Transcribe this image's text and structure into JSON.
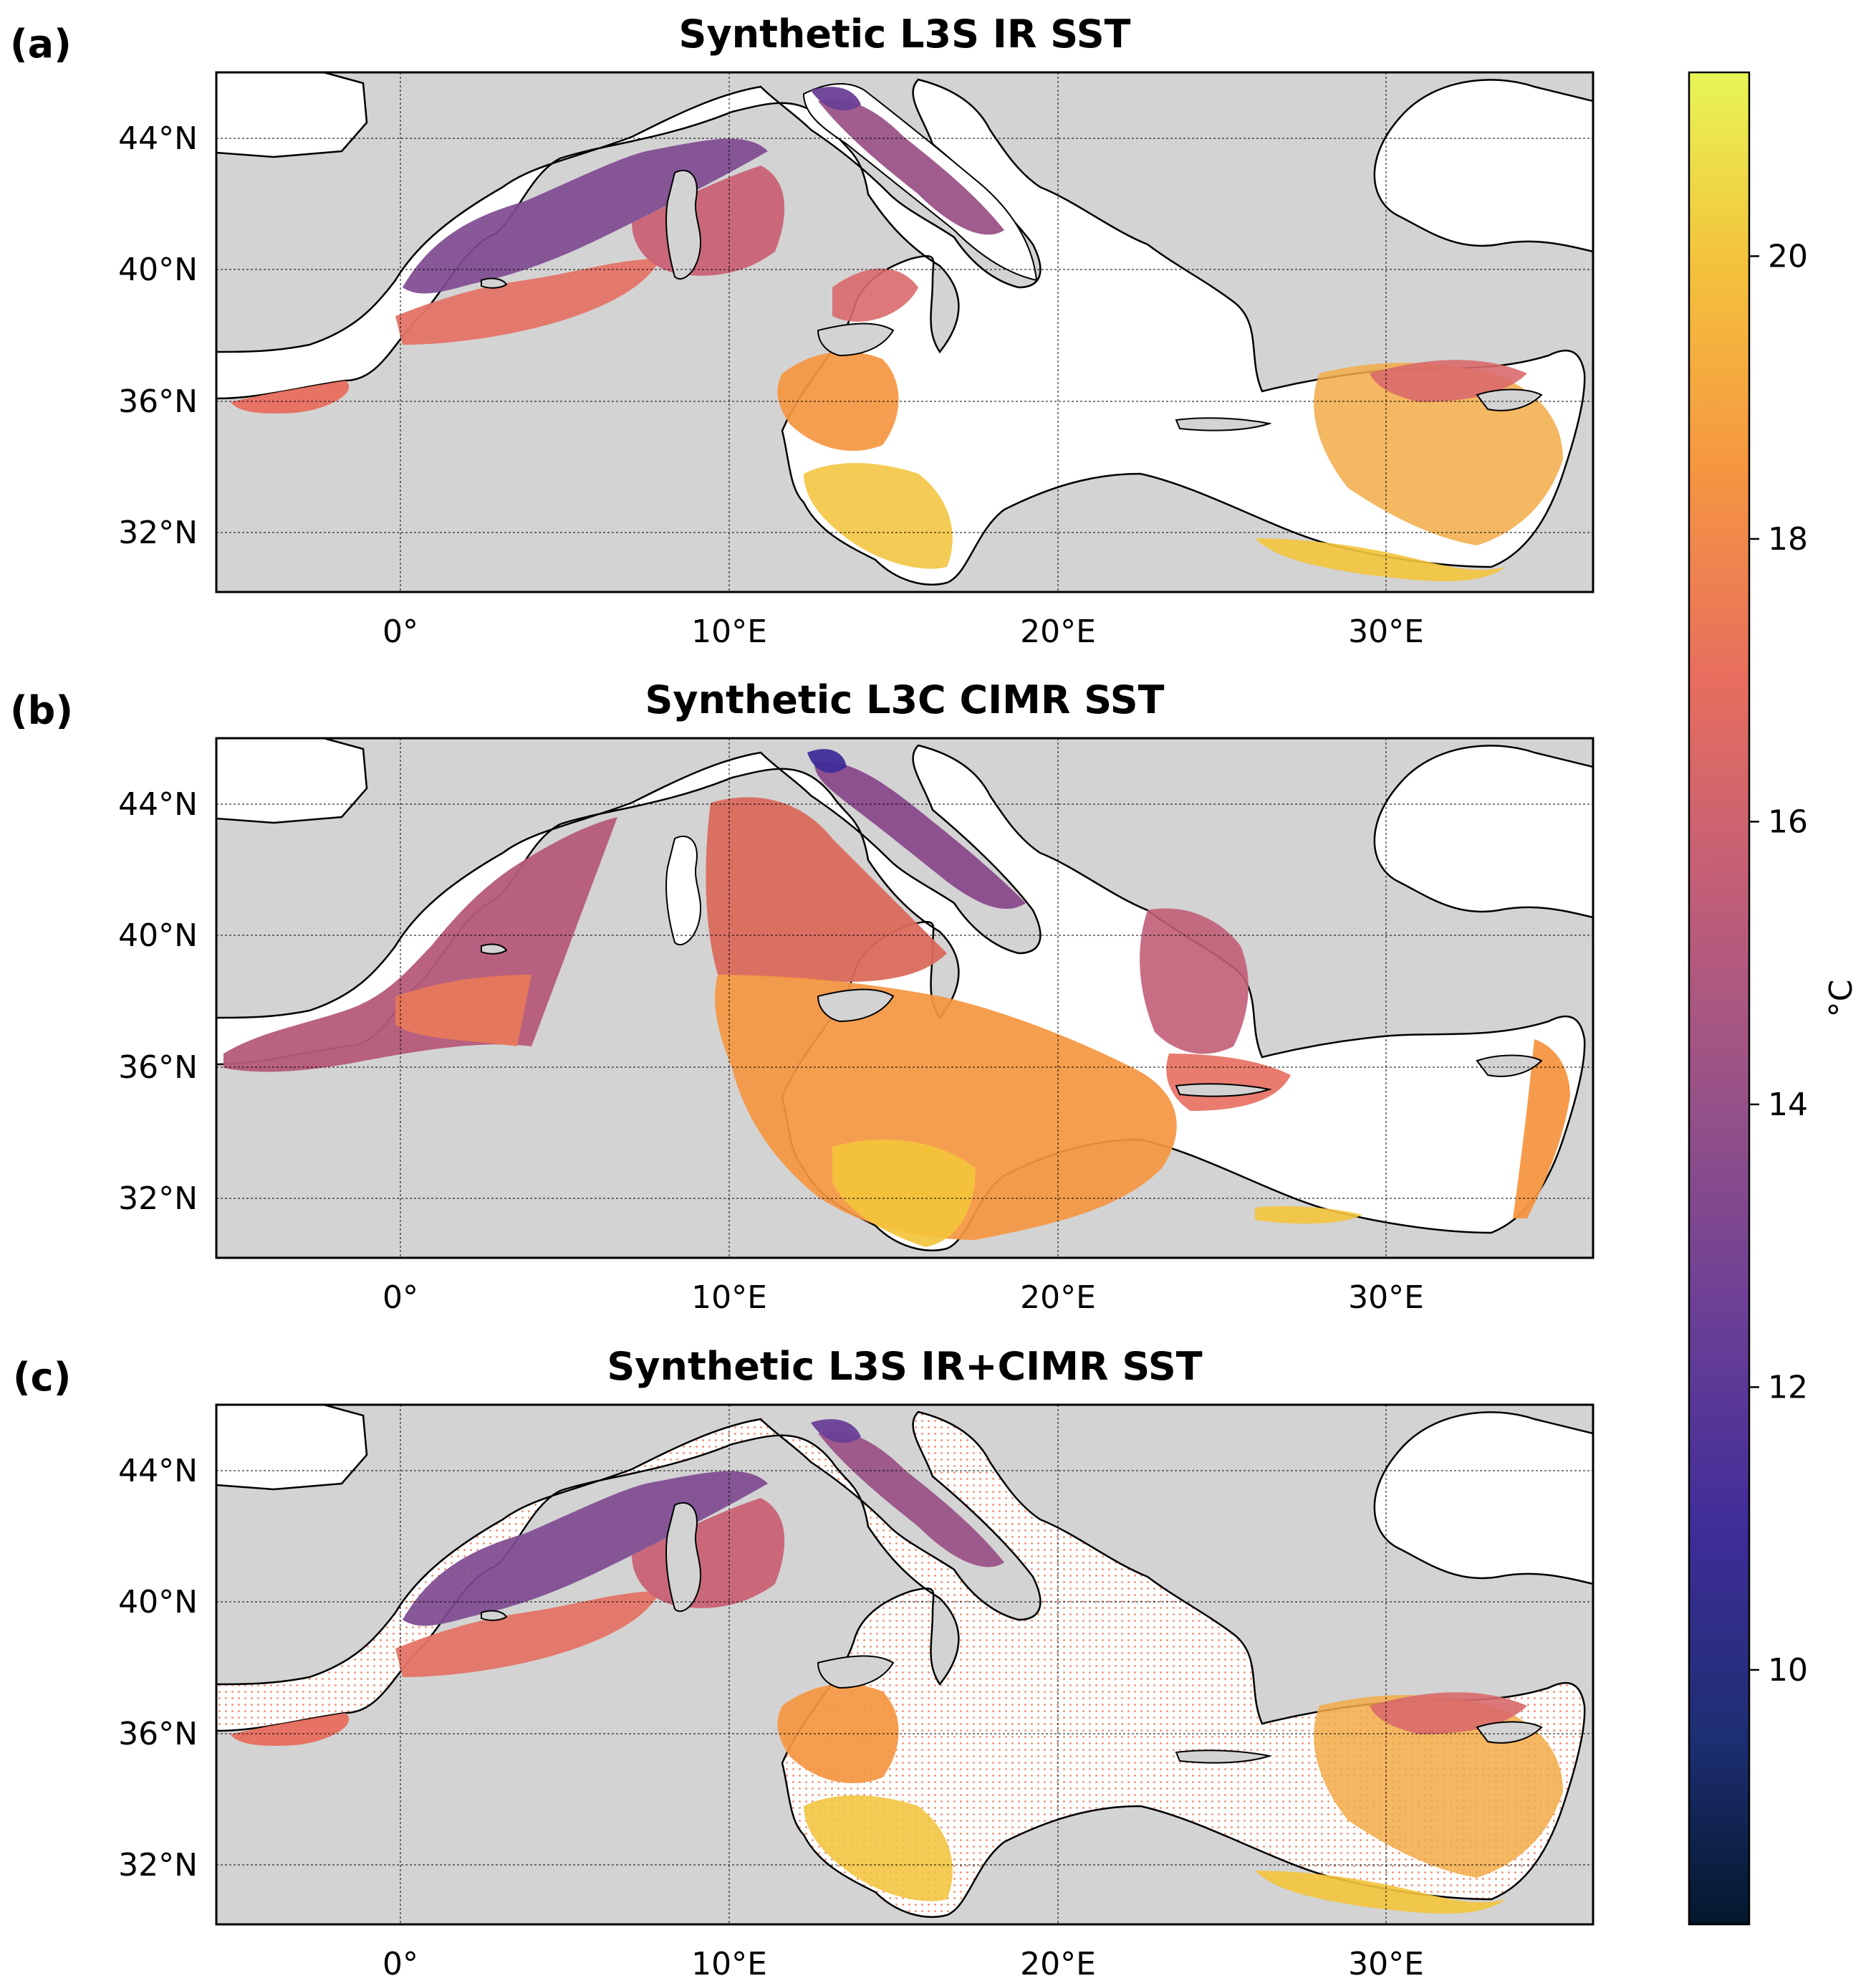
{
  "figure": {
    "units_label": "°C",
    "colors": {
      "land": "#d3d3d3",
      "sea_gap": "#ffffff",
      "coast": "#000000",
      "grid": "#000000"
    }
  },
  "map_extent": {
    "lon": [
      -5.6,
      36.3
    ],
    "lat": [
      30.2,
      46.0
    ]
  },
  "panels": [
    {
      "letter": "(a)",
      "title": "Synthetic L3S IR SST"
    },
    {
      "letter": "(b)",
      "title": "Synthetic L3C CIMR SST"
    },
    {
      "letter": "(c)",
      "title": "Synthetic L3S IR+CIMR SST"
    }
  ],
  "axes": {
    "lat_ticks": [
      {
        "value": 44,
        "label": "44°N"
      },
      {
        "value": 40,
        "label": "40°N"
      },
      {
        "value": 36,
        "label": "36°N"
      },
      {
        "value": 32,
        "label": "32°N"
      }
    ],
    "lon_ticks": [
      {
        "value": 0,
        "label": "0°"
      },
      {
        "value": 10,
        "label": "10°E"
      },
      {
        "value": 20,
        "label": "20°E"
      },
      {
        "value": 30,
        "label": "30°E"
      }
    ]
  },
  "colorbar": {
    "label": "°C",
    "range": [
      8.2,
      21.3
    ],
    "ticks": [
      {
        "value": 10,
        "label": "10"
      },
      {
        "value": 12,
        "label": "12"
      },
      {
        "value": 14,
        "label": "14"
      },
      {
        "value": 16,
        "label": "16"
      },
      {
        "value": 18,
        "label": "18"
      },
      {
        "value": 20,
        "label": "20"
      }
    ],
    "stops": [
      {
        "value": 8.2,
        "color": "#04182c"
      },
      {
        "value": 9.5,
        "color": "#1d2e72"
      },
      {
        "value": 11.0,
        "color": "#3f2d98"
      },
      {
        "value": 12.5,
        "color": "#6a3f96"
      },
      {
        "value": 14.0,
        "color": "#955187"
      },
      {
        "value": 15.5,
        "color": "#c15e78"
      },
      {
        "value": 17.0,
        "color": "#e76e5e"
      },
      {
        "value": 18.5,
        "color": "#f59641"
      },
      {
        "value": 20.0,
        "color": "#f3c43c"
      },
      {
        "value": 21.3,
        "color": "#e7f654"
      }
    ]
  }
}
